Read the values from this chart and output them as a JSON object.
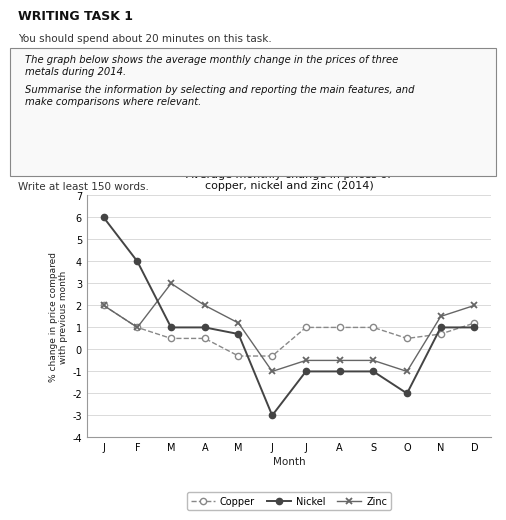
{
  "title": "Average monthly change in prices of\ncopper, nickel and zinc (2014)",
  "xlabel": "Month",
  "ylabel": "% change in price compared\nwith previous month",
  "months": [
    "J",
    "F",
    "M",
    "A",
    "M",
    "J",
    "J",
    "A",
    "S",
    "O",
    "N",
    "D"
  ],
  "copper": [
    2,
    1,
    0.5,
    0.5,
    -0.3,
    -0.3,
    1,
    1,
    1,
    0.5,
    0.7,
    1.2
  ],
  "nickel": [
    6,
    4,
    1,
    1,
    0.7,
    -3,
    -1,
    -1,
    -1,
    -2,
    1,
    1
  ],
  "zinc": [
    2,
    1,
    3,
    2,
    1.2,
    -1,
    -0.5,
    -0.5,
    -0.5,
    -1,
    1.5,
    2
  ],
  "ylim": [
    -4,
    7
  ],
  "yticks": [
    -4,
    -3,
    -2,
    -1,
    0,
    1,
    2,
    3,
    4,
    5,
    6,
    7
  ],
  "bg_color": "#ffffff",
  "line_color_copper": "#888888",
  "line_color_nickel": "#444444",
  "line_color_zinc": "#666666",
  "header_title": "WRITING TASK 1",
  "header_line1": "You should spend about 20 minutes on this task.",
  "box_text1": "The graph below shows the average monthly change in the prices of three\nmetals during 2014.",
  "box_text2": "Summarise the information by selecting and reporting the main features, and\nmake comparisons where relevant.",
  "footer_text": "Write at least 150 words."
}
